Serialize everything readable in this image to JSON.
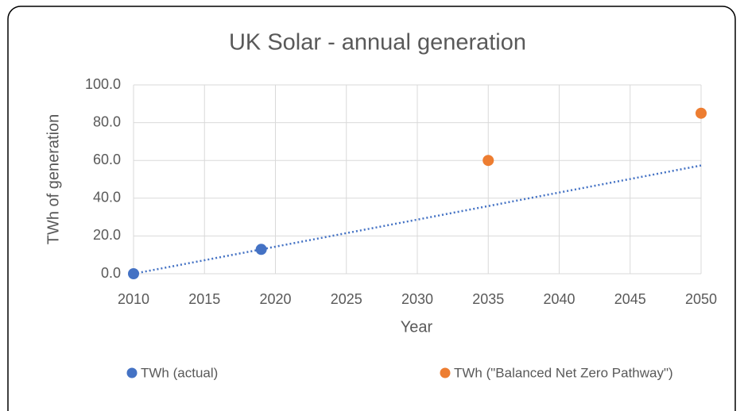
{
  "chart_data": {
    "type": "scatter",
    "title": "UK Solar - annual generation",
    "x_label": "Year",
    "y_label": "TWh of generation",
    "xlim": [
      2010,
      2050
    ],
    "xticks": [
      2010,
      2015,
      2020,
      2025,
      2030,
      2035,
      2040,
      2045,
      2050
    ],
    "ylim": [
      0,
      100
    ],
    "yticks": [
      {
        "value": 0,
        "label": "0.0"
      },
      {
        "value": 20,
        "label": "20.0"
      },
      {
        "value": 40,
        "label": "40.0"
      },
      {
        "value": 60,
        "label": "60.0"
      },
      {
        "value": 80,
        "label": "80.0"
      },
      {
        "value": 100,
        "label": "100.0"
      }
    ],
    "grid": true,
    "legend": "bottom",
    "series": [
      {
        "name": "TWh (actual)",
        "color": "#4472c4",
        "x": [
          2010,
          2019
        ],
        "values": [
          0.0,
          12.9
        ],
        "trendline": "linear"
      },
      {
        "name": "TWh (\"Balanced Net Zero Pathway\")",
        "color": "#ed7d31",
        "x": [
          2035,
          2050
        ],
        "values": [
          60,
          85
        ]
      }
    ]
  }
}
